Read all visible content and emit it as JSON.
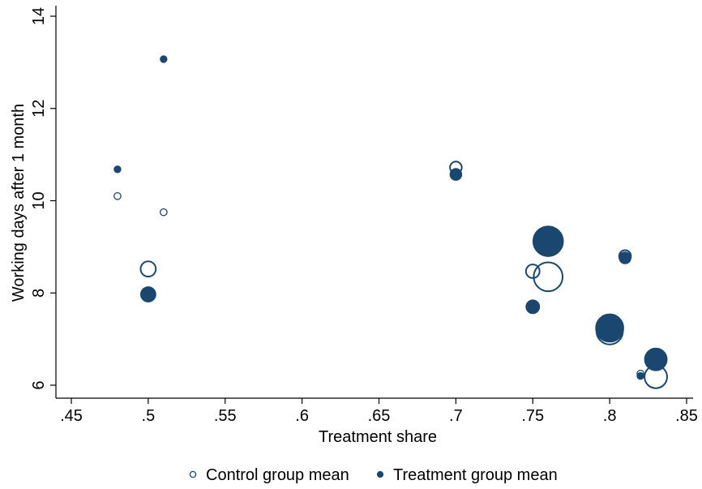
{
  "chart_data": {
    "type": "scatter",
    "xlabel": "Treatment share",
    "ylabel": "Working days after 1 month",
    "xlim": [
      0.45,
      0.85
    ],
    "ylim": [
      6,
      14
    ],
    "x_ticks": [
      {
        "value": 0.45,
        "label": ".45"
      },
      {
        "value": 0.5,
        "label": ".5"
      },
      {
        "value": 0.55,
        "label": ".55"
      },
      {
        "value": 0.6,
        "label": ".6"
      },
      {
        "value": 0.65,
        "label": ".65"
      },
      {
        "value": 0.7,
        "label": ".7"
      },
      {
        "value": 0.75,
        "label": ".75"
      },
      {
        "value": 0.8,
        "label": ".8"
      },
      {
        "value": 0.85,
        "label": ".85"
      }
    ],
    "y_ticks": [
      {
        "value": 6,
        "label": "6"
      },
      {
        "value": 8,
        "label": "8"
      },
      {
        "value": 10,
        "label": "10"
      },
      {
        "value": 12,
        "label": "12"
      },
      {
        "value": 14,
        "label": "14"
      }
    ],
    "grid": false,
    "legend_position": "bottom",
    "color": "#1a476f",
    "series": [
      {
        "name": "Control group mean",
        "style": "hollow",
        "points": [
          {
            "x": 0.48,
            "y": 10.1,
            "weight": 1
          },
          {
            "x": 0.5,
            "y": 8.52,
            "weight": 5
          },
          {
            "x": 0.51,
            "y": 9.75,
            "weight": 1
          },
          {
            "x": 0.7,
            "y": 10.72,
            "weight": 3
          },
          {
            "x": 0.75,
            "y": 8.47,
            "weight": 4
          },
          {
            "x": 0.76,
            "y": 8.35,
            "weight": 18
          },
          {
            "x": 0.8,
            "y": 7.17,
            "weight": 15
          },
          {
            "x": 0.81,
            "y": 8.8,
            "weight": 3
          },
          {
            "x": 0.82,
            "y": 6.25,
            "weight": 1
          },
          {
            "x": 0.83,
            "y": 6.18,
            "weight": 11
          }
        ]
      },
      {
        "name": "Treatment group mean",
        "style": "filled",
        "points": [
          {
            "x": 0.48,
            "y": 10.68,
            "weight": 1
          },
          {
            "x": 0.5,
            "y": 7.97,
            "weight": 5
          },
          {
            "x": 0.51,
            "y": 13.07,
            "weight": 1
          },
          {
            "x": 0.7,
            "y": 10.57,
            "weight": 3
          },
          {
            "x": 0.75,
            "y": 7.7,
            "weight": 4
          },
          {
            "x": 0.76,
            "y": 9.12,
            "weight": 20
          },
          {
            "x": 0.8,
            "y": 7.24,
            "weight": 17
          },
          {
            "x": 0.81,
            "y": 8.76,
            "weight": 3
          },
          {
            "x": 0.82,
            "y": 6.2,
            "weight": 1
          },
          {
            "x": 0.83,
            "y": 6.56,
            "weight": 11
          }
        ]
      }
    ]
  }
}
